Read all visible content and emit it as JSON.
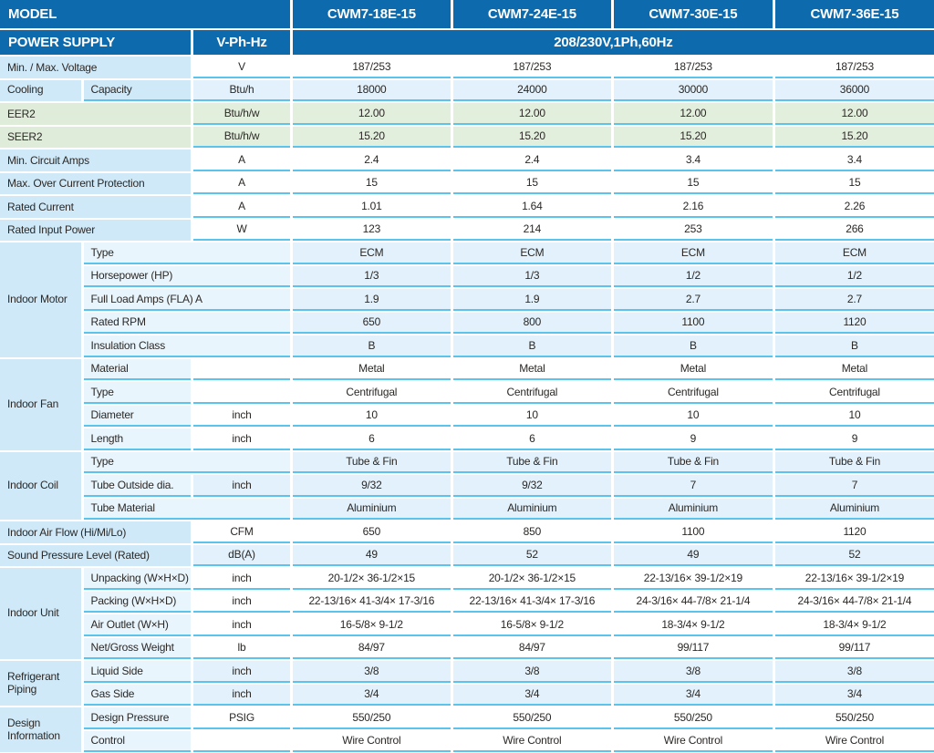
{
  "header": {
    "model_label": "MODEL",
    "models": [
      "CWM7-18E-15",
      "CWM7-24E-15",
      "CWM7-30E-15",
      "CWM7-36E-15"
    ],
    "power_supply_label": "POWER SUPPLY",
    "power_supply_unit": "V-Ph-Hz",
    "power_supply_value": "208/230V,1Ph,60Hz"
  },
  "colors": {
    "header_blue": "#0d6aac",
    "label_blue": "#cfe9f8",
    "sub_blue": "#e9f5fc",
    "band_blue": "#e2f1fb",
    "label_green": "#dfecd9",
    "band_green": "#e3efdd",
    "divider_cyan": "#5ac4ed",
    "text_dark": "#2b2826"
  },
  "rows": [
    {
      "label": "Min. / Max. Voltage",
      "unit": "V",
      "bg": "white",
      "values": [
        "187/253",
        "187/253",
        "187/253",
        "187/253"
      ]
    },
    {
      "group": {
        "label": "Cooling",
        "span": 1
      },
      "sub": "Capacity",
      "sub_strong": true,
      "unit": "Btu/h",
      "bg": "blue",
      "values": [
        "18000",
        "24000",
        "30000",
        "36000"
      ]
    },
    {
      "label": "EER2",
      "label_green": true,
      "unit": "Btu/h/w",
      "bg": "green",
      "values": [
        "12.00",
        "12.00",
        "12.00",
        "12.00"
      ]
    },
    {
      "label": "SEER2",
      "label_green": true,
      "unit": "Btu/h/w",
      "bg": "green",
      "values": [
        "15.20",
        "15.20",
        "15.20",
        "15.20"
      ]
    },
    {
      "label": "Min. Circuit Amps",
      "unit": "A",
      "bg": "white",
      "values": [
        "2.4",
        "2.4",
        "3.4",
        "3.4"
      ]
    },
    {
      "label": "Max. Over Current Protection",
      "unit": "A",
      "bg": "white",
      "values": [
        "15",
        "15",
        "15",
        "15"
      ]
    },
    {
      "label": "Rated Current",
      "unit": "A",
      "bg": "white",
      "values": [
        "1.01",
        "1.64",
        "2.16",
        "2.26"
      ]
    },
    {
      "label": "Rated Input Power",
      "unit": "W",
      "bg": "white",
      "values": [
        "123",
        "214",
        "253",
        "266"
      ]
    },
    {
      "group": {
        "label": "Indoor Motor",
        "span": 5
      },
      "sub": "Type",
      "merge_unit": true,
      "bg": "blue",
      "values": [
        "ECM",
        "ECM",
        "ECM",
        "ECM"
      ]
    },
    {
      "sub": "Horsepower (HP)",
      "merge_unit": true,
      "bg": "blue",
      "values": [
        "1/3",
        "1/3",
        "1/2",
        "1/2"
      ]
    },
    {
      "sub": "Full Load Amps (FLA) A",
      "merge_unit": true,
      "bg": "blue",
      "values": [
        "1.9",
        "1.9",
        "2.7",
        "2.7"
      ]
    },
    {
      "sub": "Rated RPM",
      "merge_unit": true,
      "bg": "blue",
      "values": [
        "650",
        "800",
        "1100",
        "1120"
      ]
    },
    {
      "sub": "Insulation Class",
      "merge_unit": true,
      "bg": "blue",
      "values": [
        "B",
        "B",
        "B",
        "B"
      ]
    },
    {
      "group": {
        "label": "Indoor Fan",
        "span": 4
      },
      "sub": "Material",
      "unit": "",
      "bg": "white",
      "values": [
        "Metal",
        "Metal",
        "Metal",
        "Metal"
      ]
    },
    {
      "sub": "Type",
      "unit": "",
      "bg": "white",
      "values": [
        "Centrifugal",
        "Centrifugal",
        "Centrifugal",
        "Centrifugal"
      ]
    },
    {
      "sub": "Diameter",
      "unit": "inch",
      "bg": "white",
      "values": [
        "10",
        "10",
        "10",
        "10"
      ]
    },
    {
      "sub": "Length",
      "unit": "inch",
      "bg": "white",
      "values": [
        "6",
        "6",
        "9",
        "9"
      ]
    },
    {
      "group": {
        "label": "Indoor Coil",
        "span": 3
      },
      "sub": "Type",
      "merge_unit": true,
      "bg": "blue",
      "values": [
        "Tube & Fin",
        "Tube & Fin",
        "Tube & Fin",
        "Tube & Fin"
      ]
    },
    {
      "sub": "Tube Outside dia.",
      "unit": "inch",
      "bg": "blue",
      "values": [
        "9/32",
        "9/32",
        "7",
        "7"
      ]
    },
    {
      "sub": "Tube Material",
      "merge_unit": true,
      "bg": "blue",
      "values": [
        "Aluminium",
        "Aluminium",
        "Aluminium",
        "Aluminium"
      ]
    },
    {
      "label": "Indoor Air Flow (Hi/Mi/Lo)",
      "unit": "CFM",
      "bg": "white",
      "values": [
        "650",
        "850",
        "1100",
        "1120"
      ]
    },
    {
      "label": "Sound Pressure Level (Rated)",
      "unit": "dB(A)",
      "bg": "blue",
      "values": [
        "49",
        "52",
        "49",
        "52"
      ]
    },
    {
      "group": {
        "label": "Indoor Unit",
        "span": 4
      },
      "sub": "Unpacking (W×H×D)",
      "unit": "inch",
      "bg": "white",
      "values": [
        "20-1/2× 36-1/2×15",
        "20-1/2× 36-1/2×15",
        "22-13/16× 39-1/2×19",
        "22-13/16× 39-1/2×19"
      ]
    },
    {
      "sub": "Packing  (W×H×D)",
      "unit": "inch",
      "bg": "white",
      "values": [
        "22-13/16× 41-3/4× 17-3/16",
        "22-13/16× 41-3/4× 17-3/16",
        "24-3/16× 44-7/8× 21-1/4",
        "24-3/16× 44-7/8× 21-1/4"
      ]
    },
    {
      "sub": "Air Outlet (W×H)",
      "unit": "inch",
      "bg": "white",
      "values": [
        "16-5/8× 9-1/2",
        "16-5/8× 9-1/2",
        "18-3/4× 9-1/2",
        "18-3/4× 9-1/2"
      ]
    },
    {
      "sub": "Net/Gross Weight",
      "unit": "lb",
      "bg": "white",
      "values": [
        "84/97",
        "84/97",
        "99/117",
        "99/117"
      ]
    },
    {
      "group": {
        "label": "Refrigerant Piping",
        "span": 2
      },
      "sub": "Liquid Side",
      "unit": "inch",
      "bg": "blue",
      "values": [
        "3/8",
        "3/8",
        "3/8",
        "3/8"
      ]
    },
    {
      "sub": "Gas Side",
      "unit": "inch",
      "bg": "blue",
      "values": [
        "3/4",
        "3/4",
        "3/4",
        "3/4"
      ]
    },
    {
      "group": {
        "label": "Design Information",
        "span": 2
      },
      "sub": "Design Pressure",
      "unit": "PSIG",
      "bg": "white",
      "values": [
        "550/250",
        "550/250",
        "550/250",
        "550/250"
      ]
    },
    {
      "sub": "Control",
      "unit": "",
      "bg": "white",
      "values": [
        "Wire Control",
        "Wire Control",
        "Wire Control",
        "Wire Control"
      ]
    }
  ]
}
